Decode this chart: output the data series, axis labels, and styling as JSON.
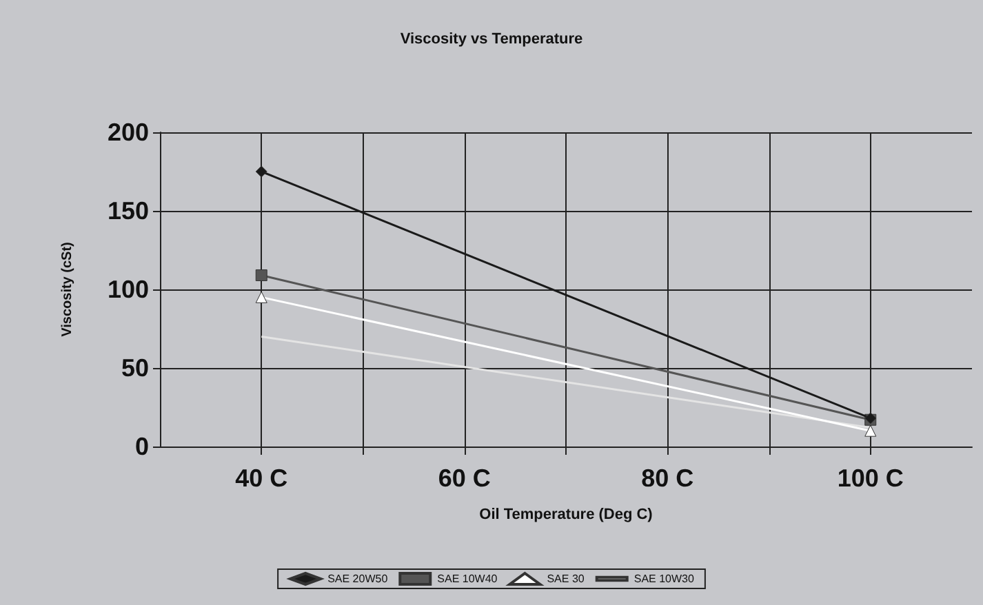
{
  "chart_data": {
    "type": "line",
    "title": "Viscosity vs Temperature",
    "xlabel": "Oil Temperature (Deg C)",
    "ylabel": "Viscosity (cSt)",
    "x": [
      40,
      100
    ],
    "xlim": [
      30,
      110
    ],
    "xticks": [
      {
        "value": 40,
        "label": "40 C"
      },
      {
        "value": 50,
        "label": null
      },
      {
        "value": 60,
        "label": "60 C"
      },
      {
        "value": 70,
        "label": null
      },
      {
        "value": 80,
        "label": "80 C"
      },
      {
        "value": 90,
        "label": null
      },
      {
        "value": 100,
        "label": "100 C"
      }
    ],
    "ylim": [
      0,
      200
    ],
    "yticks": [
      0,
      50,
      100,
      150,
      200
    ],
    "grid": true,
    "legend": "bottom",
    "line_style": "solid",
    "series": [
      {
        "name": "SAE 20W50",
        "color": "#1a1a1a",
        "marker": "diamond",
        "values": [
          175,
          18
        ]
      },
      {
        "name": "SAE 10W40",
        "color": "#555555",
        "marker": "square",
        "values": [
          109,
          17
        ]
      },
      {
        "name": "SAE 30",
        "color": "#ffffff",
        "marker": "triangle",
        "values": [
          95,
          10
        ]
      },
      {
        "name": "SAE 10W30",
        "color": "#e4e4e4",
        "marker": "none",
        "values": [
          70,
          12
        ]
      }
    ]
  }
}
